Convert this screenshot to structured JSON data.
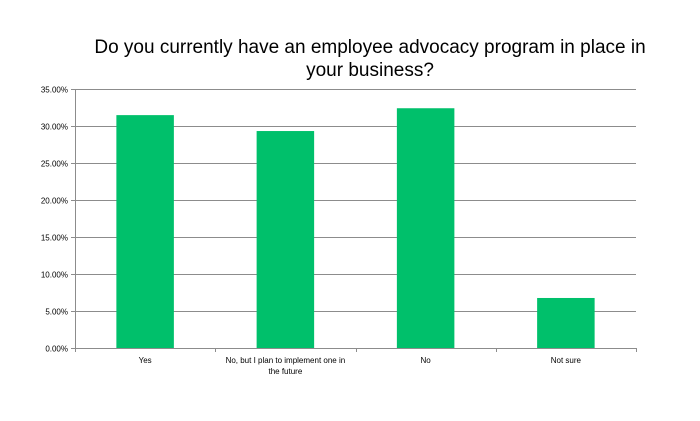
{
  "chart_data": {
    "type": "bar",
    "title": "Do you currently have an employee advocacy program in place in your business?",
    "categories": [
      "Yes",
      "No, but I plan to implement one in the future",
      "No",
      "Not sure"
    ],
    "category_lines": [
      [
        "Yes"
      ],
      [
        "No, but I plan to implement one in",
        "the future"
      ],
      [
        "No"
      ],
      [
        "Not sure"
      ]
    ],
    "values": [
      0.3147,
      0.2932,
      0.324,
      0.0676
    ],
    "ylim": [
      0,
      0.35
    ],
    "yticks": [
      0,
      0.05,
      0.1,
      0.15,
      0.2,
      0.25,
      0.3,
      0.35
    ],
    "ytick_labels": [
      "0.00%",
      "5.00%",
      "10.00%",
      "15.00%",
      "20.00%",
      "25.00%",
      "30.00%",
      "35.00%"
    ],
    "grid": true,
    "colors": {
      "bar": "#00C06B",
      "grid": "#8c8c8c",
      "axis": "#8c8c8c",
      "text": "#000000"
    }
  }
}
